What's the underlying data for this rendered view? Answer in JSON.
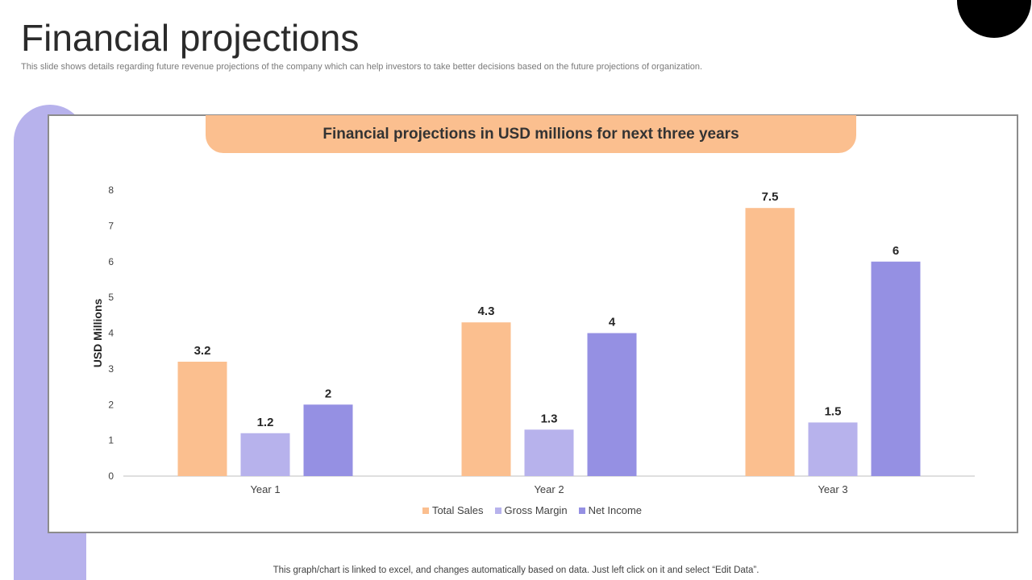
{
  "slide": {
    "title": "Financial projections",
    "subtitle": "This slide shows details regarding future revenue projections of the company which can help investors to take better decisions based on the future projections of organization.",
    "footnote": "This graph/chart is linked to excel,  and changes automatically based on data. Just left click on it and select “Edit Data”."
  },
  "colors": {
    "total_sales": "#fbbf8f",
    "gross_margin": "#b7b2ec",
    "net_income": "#9590e3",
    "accent_black": "#000000"
  },
  "chart_data": {
    "type": "bar",
    "title": "Financial projections in USD millions  for next three years",
    "xlabel": "",
    "ylabel": "USD Millions",
    "ylim": [
      0,
      8
    ],
    "yticks": [
      "0",
      "1",
      "2",
      "3",
      "4",
      "5",
      "6",
      "7",
      "8"
    ],
    "grid": false,
    "legend_position": "bottom",
    "categories": [
      "Year 1",
      "Year 2",
      "Year 3"
    ],
    "series": [
      {
        "name": "Total Sales",
        "values": [
          3.2,
          4.3,
          7.5
        ],
        "labels": [
          "3.2",
          "4.3",
          "7.5"
        ]
      },
      {
        "name": "Gross Margin",
        "values": [
          1.2,
          1.3,
          1.5
        ],
        "labels": [
          "1.2",
          "1.3",
          "1.5"
        ]
      },
      {
        "name": "Net Income",
        "values": [
          2,
          4,
          6
        ],
        "labels": [
          "2",
          "4",
          "6"
        ]
      }
    ]
  }
}
